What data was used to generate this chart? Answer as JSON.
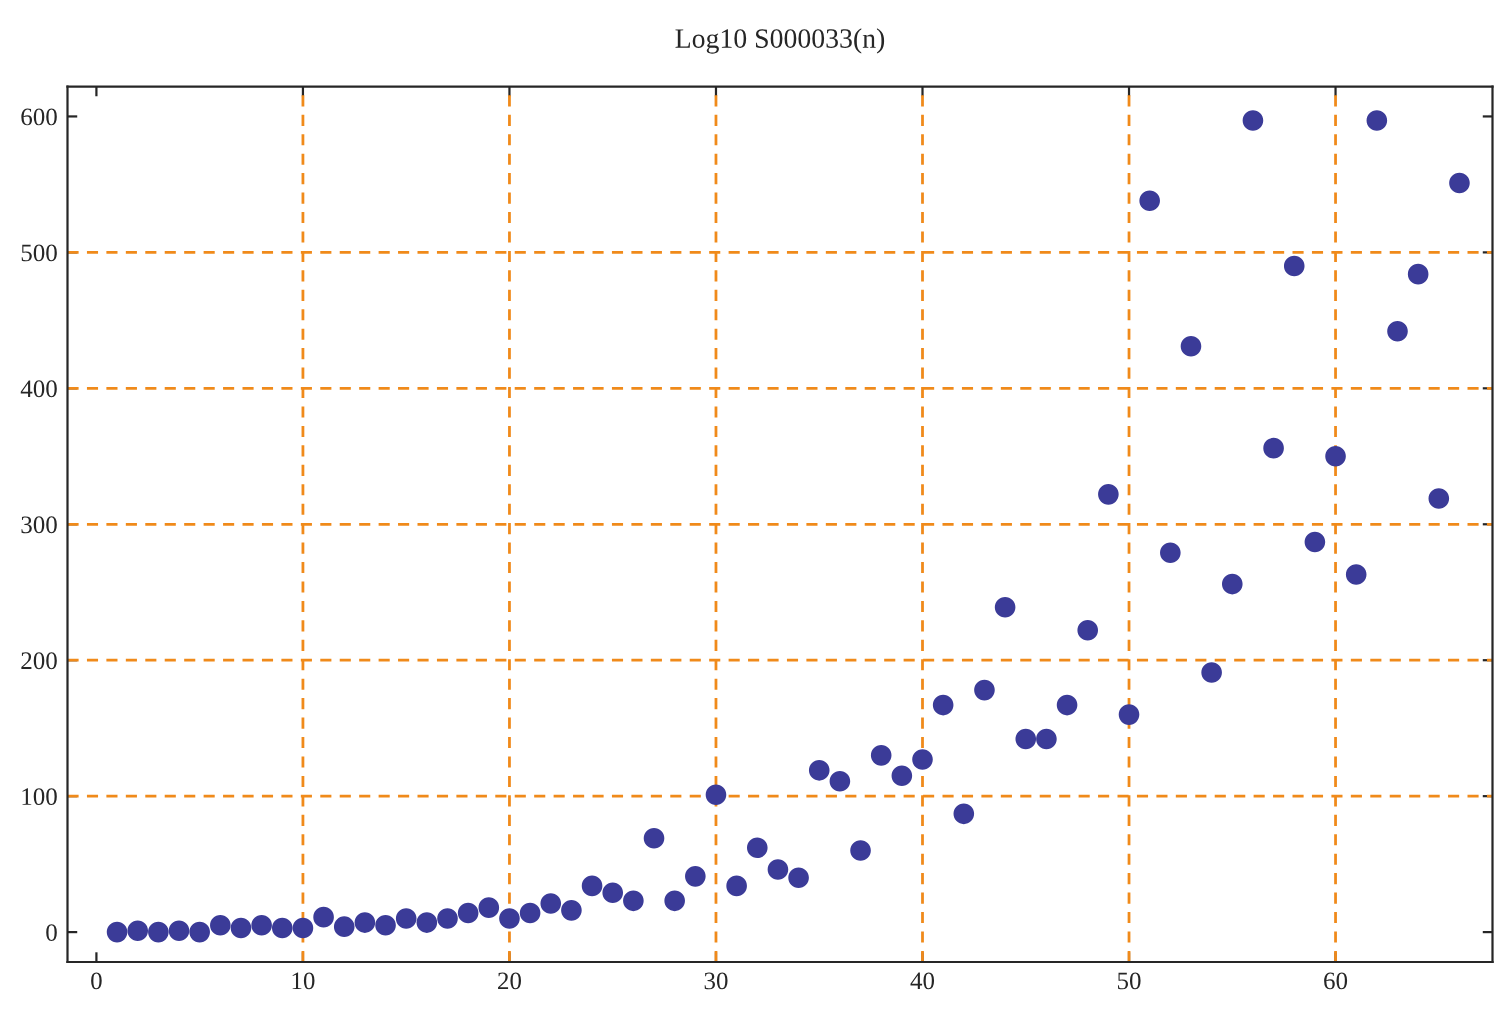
{
  "chart_data": {
    "type": "scatter",
    "title": "Log10 S000033(n)",
    "x": [
      1,
      2,
      3,
      4,
      5,
      6,
      7,
      8,
      9,
      10,
      11,
      12,
      13,
      14,
      15,
      16,
      17,
      18,
      19,
      20,
      21,
      22,
      23,
      24,
      25,
      26,
      27,
      28,
      29,
      30,
      31,
      32,
      33,
      34,
      35,
      36,
      37,
      38,
      39,
      40,
      41,
      42,
      43,
      44,
      45,
      46,
      47,
      48,
      49,
      50,
      51,
      52,
      53,
      54,
      55,
      56,
      57,
      58,
      59,
      60,
      61,
      62,
      63,
      64,
      65,
      66
    ],
    "values": [
      0,
      1,
      0,
      1,
      0,
      5,
      3,
      5,
      3,
      3,
      11,
      4,
      7,
      5,
      10,
      7,
      10,
      14,
      18,
      10,
      14,
      21,
      16,
      34,
      29,
      23,
      69,
      23,
      41,
      101,
      34,
      62,
      46,
      40,
      119,
      111,
      60,
      130,
      115,
      127,
      167,
      87,
      178,
      239,
      142,
      142,
      167,
      222,
      322,
      160,
      538,
      279,
      431,
      191,
      256,
      597,
      356,
      490,
      287,
      350,
      263,
      597,
      442,
      484,
      319,
      551
    ],
    "color": "#3b3b98",
    "marker": "circle",
    "xlim": [
      -1.4,
      67.6
    ],
    "xticks": [
      0,
      10,
      20,
      30,
      40,
      50,
      60
    ],
    "ylim": [
      -22,
      622
    ],
    "yticks": [
      0,
      100,
      200,
      300,
      400,
      500,
      600
    ],
    "grid": false,
    "ref_lines": [
      {
        "axis": "x",
        "value": 10,
        "color": "#f08a1a",
        "line_style": "dashed"
      },
      {
        "axis": "x",
        "value": 20,
        "color": "#f08a1a",
        "line_style": "dashed"
      },
      {
        "axis": "x",
        "value": 30,
        "color": "#f08a1a",
        "line_style": "dashed"
      },
      {
        "axis": "x",
        "value": 40,
        "color": "#f08a1a",
        "line_style": "dashed"
      },
      {
        "axis": "x",
        "value": 50,
        "color": "#f08a1a",
        "line_style": "dashed"
      },
      {
        "axis": "x",
        "value": 60,
        "color": "#f08a1a",
        "line_style": "dashed"
      },
      {
        "axis": "y",
        "value": 100,
        "color": "#f08a1a",
        "line_style": "dashed"
      },
      {
        "axis": "y",
        "value": 200,
        "color": "#f08a1a",
        "line_style": "dashed"
      },
      {
        "axis": "y",
        "value": 300,
        "color": "#f08a1a",
        "line_style": "dashed"
      },
      {
        "axis": "y",
        "value": 400,
        "color": "#f08a1a",
        "line_style": "dashed"
      },
      {
        "axis": "y",
        "value": 500,
        "color": "#f08a1a",
        "line_style": "dashed"
      }
    ]
  }
}
